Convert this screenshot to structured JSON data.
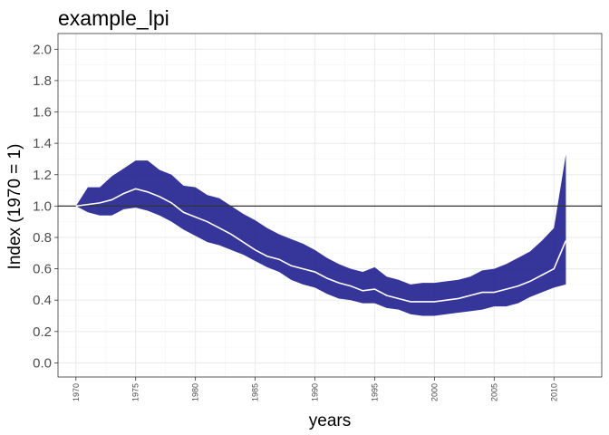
{
  "chart_data": {
    "type": "area",
    "title": "example_lpi",
    "xlabel": "years",
    "ylabel": "Index (1970 = 1)",
    "xlim": [
      1968.5,
      2014
    ],
    "ylim": [
      -0.09,
      2.1
    ],
    "yticks": [
      "0.0",
      "0.2",
      "0.4",
      "0.6",
      "0.8",
      "1.0",
      "1.2",
      "1.4",
      "1.6",
      "1.8",
      "2.0"
    ],
    "xticks": [
      "1970",
      "1975",
      "1980",
      "1985",
      "1990",
      "1995",
      "2000",
      "2005",
      "2010"
    ],
    "baseline": 1.0,
    "grid": true,
    "colors": {
      "ribbon": "#1a1a8c",
      "line": "#ffffff",
      "baseline": "#333333",
      "grid_major": "#ebebeb",
      "grid_minor": "#f5f5f5",
      "border": "#333333"
    },
    "series": [
      {
        "x": [
          1970,
          1971,
          1972,
          1973,
          1974,
          1975,
          1976,
          1977,
          1978,
          1979,
          1980,
          1981,
          1982,
          1983,
          1984,
          1985,
          1986,
          1987,
          1988,
          1989,
          1990,
          1991,
          1992,
          1993,
          1994,
          1995,
          1996,
          1997,
          1998,
          1999,
          2000,
          2001,
          2002,
          2003,
          2004,
          2005,
          2006,
          2007,
          2008,
          2009,
          2010,
          2011
        ],
        "y": [
          1.0,
          1.01,
          1.02,
          1.04,
          1.08,
          1.11,
          1.09,
          1.06,
          1.02,
          0.96,
          0.93,
          0.9,
          0.86,
          0.82,
          0.77,
          0.72,
          0.68,
          0.66,
          0.62,
          0.6,
          0.58,
          0.54,
          0.51,
          0.49,
          0.46,
          0.47,
          0.43,
          0.41,
          0.39,
          0.39,
          0.39,
          0.4,
          0.41,
          0.43,
          0.45,
          0.45,
          0.47,
          0.49,
          0.52,
          0.56,
          0.6,
          0.78
        ],
        "lower": [
          1.0,
          0.96,
          0.94,
          0.94,
          0.98,
          0.99,
          0.97,
          0.94,
          0.9,
          0.85,
          0.81,
          0.77,
          0.75,
          0.72,
          0.69,
          0.65,
          0.61,
          0.58,
          0.53,
          0.5,
          0.48,
          0.44,
          0.41,
          0.4,
          0.38,
          0.38,
          0.35,
          0.34,
          0.31,
          0.3,
          0.3,
          0.31,
          0.32,
          0.33,
          0.34,
          0.36,
          0.36,
          0.38,
          0.42,
          0.45,
          0.48,
          0.5
        ],
        "upper": [
          1.0,
          1.12,
          1.12,
          1.19,
          1.24,
          1.29,
          1.29,
          1.23,
          1.2,
          1.13,
          1.12,
          1.07,
          1.05,
          1.0,
          0.95,
          0.91,
          0.86,
          0.82,
          0.79,
          0.76,
          0.72,
          0.67,
          0.63,
          0.6,
          0.58,
          0.61,
          0.55,
          0.53,
          0.5,
          0.51,
          0.51,
          0.52,
          0.53,
          0.55,
          0.59,
          0.6,
          0.63,
          0.67,
          0.71,
          0.78,
          0.86,
          1.33
        ]
      }
    ]
  }
}
